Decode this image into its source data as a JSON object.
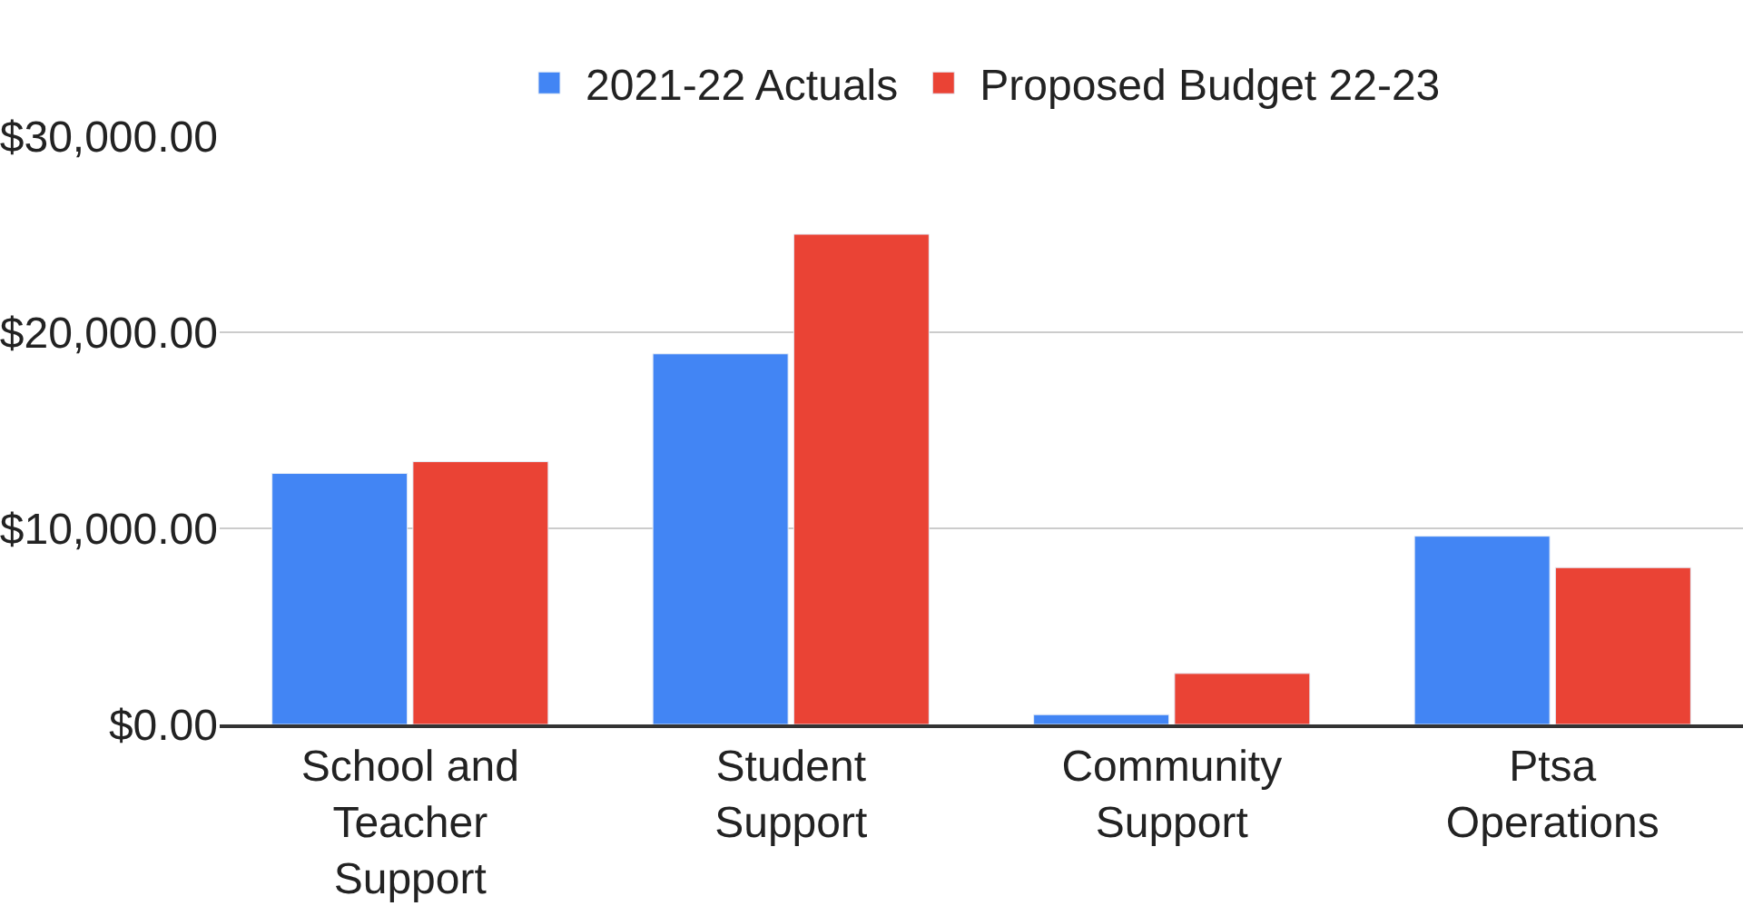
{
  "chart_data": {
    "type": "bar",
    "categories": [
      "School and\nTeacher\nSupport",
      "Student\nSupport",
      "Community\nSupport",
      "Ptsa\nOperations"
    ],
    "series": [
      {
        "name": "2021-22 Actuals",
        "color": "#4285f4",
        "values": [
          12800,
          18900,
          500,
          9600
        ]
      },
      {
        "name": "Proposed Budget 22-23",
        "color": "#ea4335",
        "values": [
          13400,
          25000,
          2600,
          8000
        ]
      }
    ],
    "ylim": [
      0,
      30000
    ],
    "yticks": [
      {
        "value": 0,
        "label": "$0.00"
      },
      {
        "value": 10000,
        "label": "$10,000.00"
      },
      {
        "value": 20000,
        "label": "$20,000.00"
      },
      {
        "value": 30000,
        "label": "$30,000.00"
      }
    ],
    "grid": "y",
    "legend": "top"
  }
}
